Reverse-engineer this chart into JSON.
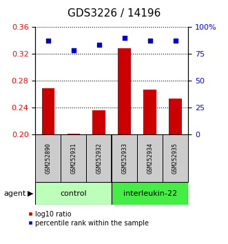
{
  "title": "GDS3226 / 14196",
  "samples": [
    "GSM252890",
    "GSM252931",
    "GSM252932",
    "GSM252933",
    "GSM252934",
    "GSM252935"
  ],
  "log10_ratio": [
    0.269,
    0.201,
    0.236,
    0.328,
    0.266,
    0.253
  ],
  "percentile_rank": [
    87,
    78,
    83,
    90,
    87,
    87
  ],
  "ylim_left": [
    0.2,
    0.36
  ],
  "ylim_right": [
    0,
    100
  ],
  "yticks_left": [
    0.2,
    0.24,
    0.28,
    0.32,
    0.36
  ],
  "yticks_right": [
    0,
    25,
    50,
    75,
    100
  ],
  "ytick_labels_right": [
    "0",
    "25",
    "50",
    "75",
    "100%"
  ],
  "bar_color": "#cc0000",
  "dot_color": "#0000cc",
  "bar_width": 0.5,
  "group_labels": [
    "control",
    "interleukin-22"
  ],
  "group_colors": [
    "#bbffbb",
    "#44ee44"
  ],
  "group_split": 3,
  "agent_label": "agent",
  "legend_bar_label": "log10 ratio",
  "legend_dot_label": "percentile rank within the sample",
  "title_fontsize": 11,
  "tick_fontsize": 8,
  "sample_fontsize": 6,
  "group_fontsize": 8,
  "legend_fontsize": 7,
  "background_color": "#ffffff",
  "plot_bg_color": "#ffffff",
  "label_bg_color": "#cccccc",
  "grid_color": "#000000"
}
